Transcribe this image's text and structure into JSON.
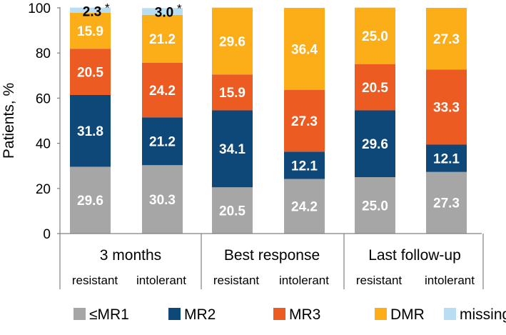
{
  "chart_data": {
    "type": "bar",
    "stacked": true,
    "ylabel": "Patients, %",
    "ylim": [
      0,
      100
    ],
    "yticks": [
      0,
      20,
      40,
      60,
      80,
      100
    ],
    "groups": [
      "3 months",
      "Best response",
      "Last follow-up"
    ],
    "subgroups": [
      "resistant",
      "intolerant"
    ],
    "categories": [
      "3 months resistant",
      "3 months intolerant",
      "Best response resistant",
      "Best response intolerant",
      "Last follow-up resistant",
      "Last follow-up intolerant"
    ],
    "series": [
      {
        "name": "≤MR1",
        "color": "#a6a6a6",
        "label_color": "#ffffff",
        "values": [
          29.6,
          30.3,
          20.5,
          24.2,
          25.0,
          27.3
        ]
      },
      {
        "name": "MR2",
        "color": "#0e4878",
        "label_color": "#ffffff",
        "values": [
          31.8,
          21.2,
          34.1,
          12.1,
          29.6,
          12.1
        ]
      },
      {
        "name": "MR3",
        "color": "#eb5b22",
        "label_color": "#ffffff",
        "values": [
          20.5,
          24.2,
          15.9,
          27.3,
          20.5,
          33.3
        ]
      },
      {
        "name": "DMR",
        "color": "#fbae17",
        "label_color": "#ffffff",
        "values": [
          15.9,
          21.2,
          29.6,
          36.4,
          25.0,
          27.3
        ]
      },
      {
        "name": "missing",
        "color": "#b9def3",
        "label_color": "#000000",
        "values": [
          2.3,
          3.0,
          0,
          0,
          0,
          0
        ]
      }
    ],
    "value_labels": [
      [
        "29.6",
        "31.8",
        "20.5",
        "15.9",
        "2.3"
      ],
      [
        "30.3",
        "21.2",
        "24.2",
        "21.2",
        "3.0"
      ],
      [
        "20.5",
        "34.1",
        "15.9",
        "29.6",
        ""
      ],
      [
        "24.2",
        "12.1",
        "27.3",
        "36.4",
        ""
      ],
      [
        "25.0",
        "29.6",
        "20.5",
        "25.0",
        ""
      ],
      [
        "27.3",
        "12.1",
        "33.3",
        "27.3",
        ""
      ]
    ],
    "annotations": [
      "*",
      "*"
    ],
    "legend": {
      "position": "bottom",
      "items": [
        "≤MR1",
        "MR2",
        "MR3",
        "DMR",
        "missing"
      ]
    }
  }
}
